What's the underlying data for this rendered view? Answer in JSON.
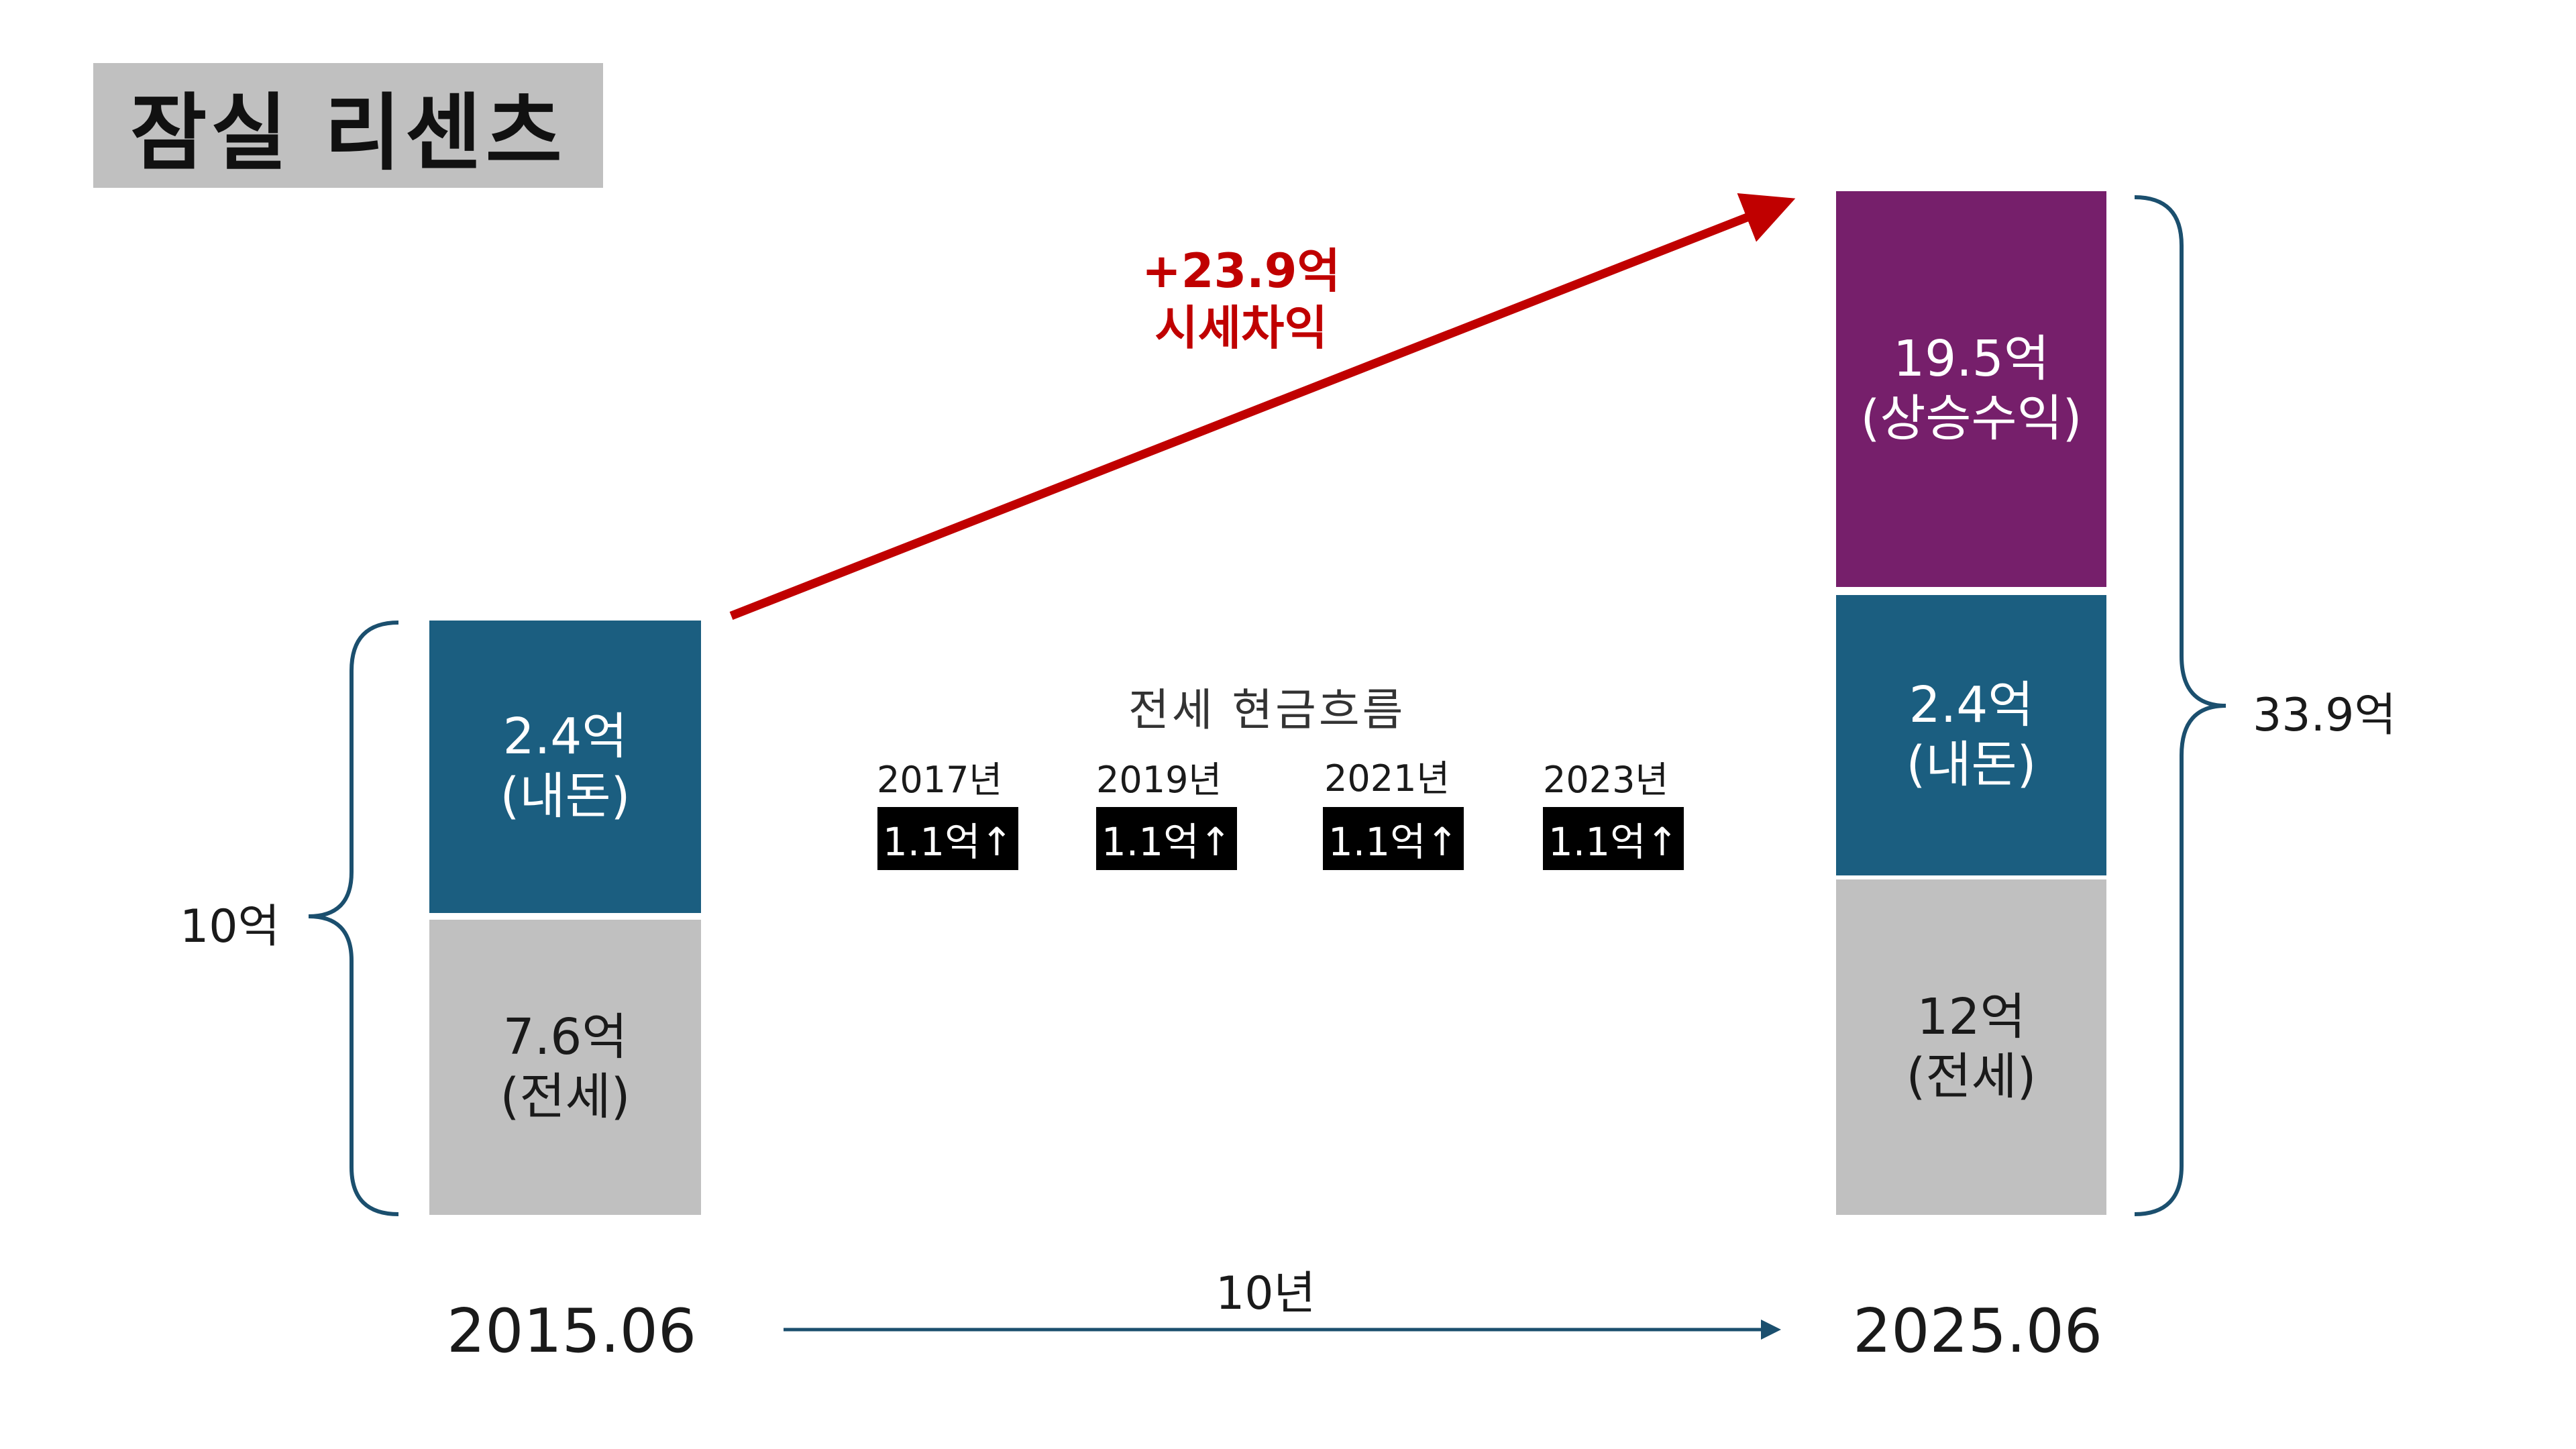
{
  "title": "잠실 리센츠",
  "left_bar": {
    "top_value": "2.4억",
    "top_label": "(내돈)",
    "bottom_value": "7.6억",
    "bottom_label": "(전세)",
    "total": "10억",
    "date": "2015.06"
  },
  "right_bar": {
    "top_value": "19.5억",
    "top_label": "(상승수익)",
    "mid_value": "2.4억",
    "mid_label": "(내돈)",
    "bottom_value": "12억",
    "bottom_label": "(전세)",
    "total": "33.9억",
    "date": "2025.06"
  },
  "gain": {
    "amount": "+23.9억",
    "label": "시세차익"
  },
  "cashflow": {
    "title": "전세 현금흐름",
    "items": [
      {
        "year": "2017년",
        "amount": "1.1억↑"
      },
      {
        "year": "2019년",
        "amount": "1.1억↑"
      },
      {
        "year": "2021년",
        "amount": "1.1억↑"
      },
      {
        "year": "2023년",
        "amount": "1.1억↑"
      }
    ]
  },
  "period": "10년",
  "colors": {
    "teal": "#1b5e80",
    "gray": "#c0c0c0",
    "purple": "#761f6b",
    "red_arrow": "#c00000",
    "brace": "#1b4f6e",
    "timeline_arrow": "#1b4f6e"
  }
}
